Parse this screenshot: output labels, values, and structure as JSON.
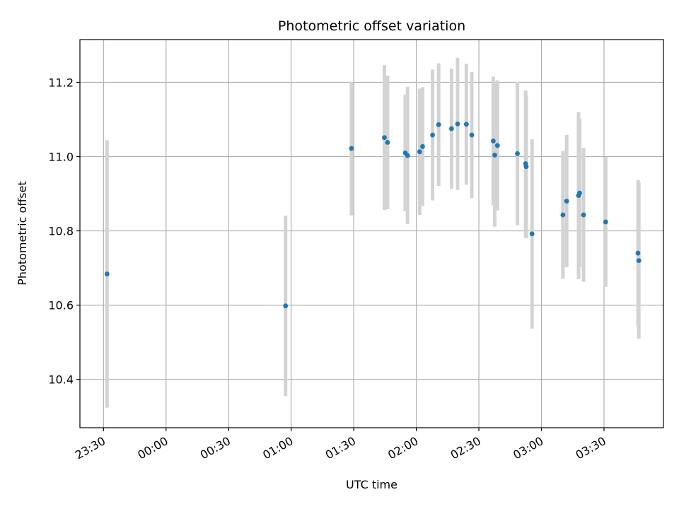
{
  "chart_data": {
    "type": "scatter",
    "title": "Photometric offset variation",
    "xlabel": "UTC time",
    "ylabel": "Photometric offset",
    "x_unit": "minutes_after_midnight",
    "xlim": [
      -41.3,
      238.5
    ],
    "ylim": [
      10.27,
      11.315
    ],
    "grid": true,
    "xticks": [
      {
        "value": -30,
        "label": "23:30"
      },
      {
        "value": 0,
        "label": "00:00"
      },
      {
        "value": 30,
        "label": "00:30"
      },
      {
        "value": 60,
        "label": "01:00"
      },
      {
        "value": 90,
        "label": "01:30"
      },
      {
        "value": 120,
        "label": "02:00"
      },
      {
        "value": 150,
        "label": "02:30"
      },
      {
        "value": 180,
        "label": "03:00"
      },
      {
        "value": 210,
        "label": "03:30"
      }
    ],
    "yticks": [
      10.4,
      10.6,
      10.8,
      11.0,
      11.2
    ],
    "marker_color": "#1f77b4",
    "errorbar_color": "#d3d3d3",
    "points": [
      {
        "x": -28.3,
        "y": 10.684,
        "yerr": 0.36
      },
      {
        "x": 57.3,
        "y": 10.598,
        "yerr": 0.243
      },
      {
        "x": 88.9,
        "y": 11.022,
        "yerr": 0.18
      },
      {
        "x": 104.7,
        "y": 11.051,
        "yerr": 0.195
      },
      {
        "x": 106.2,
        "y": 11.038,
        "yerr": 0.18
      },
      {
        "x": 114.7,
        "y": 11.01,
        "yerr": 0.157
      },
      {
        "x": 115.8,
        "y": 11.003,
        "yerr": 0.185
      },
      {
        "x": 121.6,
        "y": 11.013,
        "yerr": 0.17
      },
      {
        "x": 123.0,
        "y": 11.027,
        "yerr": 0.16
      },
      {
        "x": 127.8,
        "y": 11.058,
        "yerr": 0.176
      },
      {
        "x": 130.7,
        "y": 11.086,
        "yerr": 0.165
      },
      {
        "x": 136.9,
        "y": 11.075,
        "yerr": 0.162
      },
      {
        "x": 139.8,
        "y": 11.088,
        "yerr": 0.178
      },
      {
        "x": 144.0,
        "y": 11.087,
        "yerr": 0.163
      },
      {
        "x": 146.6,
        "y": 11.058,
        "yerr": 0.17
      },
      {
        "x": 156.9,
        "y": 11.042,
        "yerr": 0.173
      },
      {
        "x": 157.6,
        "y": 11.004,
        "yerr": 0.193
      },
      {
        "x": 158.9,
        "y": 11.03,
        "yerr": 0.175
      },
      {
        "x": 168.5,
        "y": 11.008,
        "yerr": 0.193
      },
      {
        "x": 172.4,
        "y": 10.981,
        "yerr": 0.197
      },
      {
        "x": 172.7,
        "y": 10.973,
        "yerr": 0.193
      },
      {
        "x": 175.5,
        "y": 10.792,
        "yerr": 0.255
      },
      {
        "x": 190.3,
        "y": 10.843,
        "yerr": 0.172
      },
      {
        "x": 192.1,
        "y": 10.88,
        "yerr": 0.178
      },
      {
        "x": 197.8,
        "y": 10.895,
        "yerr": 0.225
      },
      {
        "x": 198.3,
        "y": 10.902,
        "yerr": 0.2
      },
      {
        "x": 200.2,
        "y": 10.843,
        "yerr": 0.18
      },
      {
        "x": 210.8,
        "y": 10.824,
        "yerr": 0.175
      },
      {
        "x": 226.3,
        "y": 10.74,
        "yerr": 0.197
      },
      {
        "x": 226.7,
        "y": 10.72,
        "yerr": 0.21
      }
    ]
  }
}
